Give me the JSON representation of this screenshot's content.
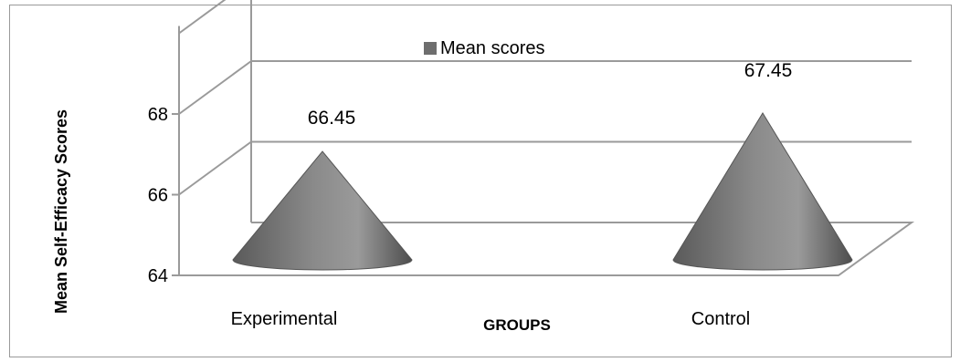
{
  "chart_data": {
    "type": "bar",
    "shape": "cone",
    "categories": [
      "Experimental",
      "Control"
    ],
    "series": [
      {
        "name": "Mean scores",
        "values": [
          66.45,
          67.45
        ],
        "color": "#6e6e6e"
      }
    ],
    "data_labels": [
      "66.45",
      "67.45"
    ],
    "xlabel": "GROUPS",
    "ylabel": "Mean Self-Efficacy Scores",
    "y_ticks": [
      64,
      66,
      68
    ],
    "ylim": [
      64,
      70
    ],
    "grid": true,
    "legend_position": "top"
  }
}
